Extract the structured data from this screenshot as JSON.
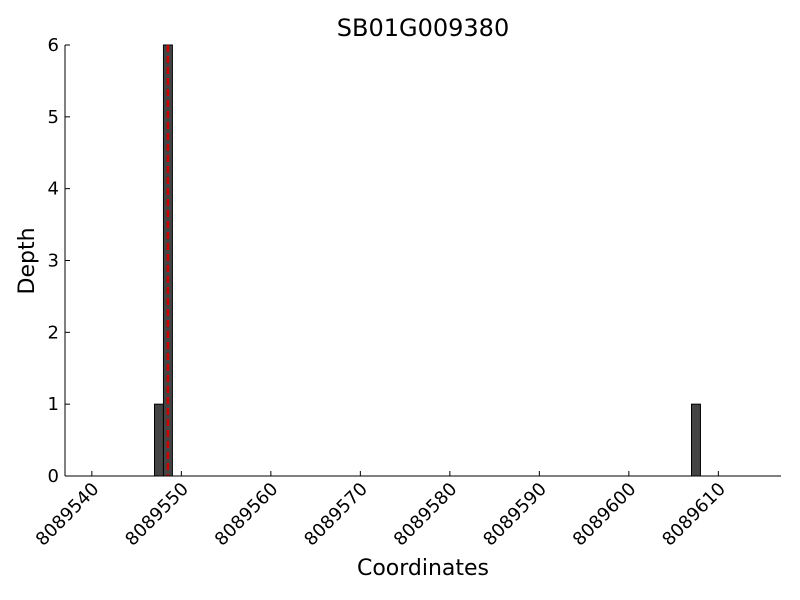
{
  "chart_data": {
    "type": "bar",
    "title": "SB01G009380",
    "x_label": "Coordinates",
    "y_label": "Depth",
    "x": [
      8089547,
      8089548,
      8089607
    ],
    "values": [
      1,
      6,
      1
    ],
    "bar_width": 1,
    "color": "#444444",
    "reference_line_x": 8089548.5,
    "reference_line_color": "#cc0000",
    "xlim": [
      8089537,
      8089617
    ],
    "xticks": [
      8089540,
      8089550,
      8089560,
      8089570,
      8089580,
      8089590,
      8089600,
      8089610
    ],
    "ylim": [
      0,
      6
    ],
    "yticks": [
      0,
      1,
      2,
      3,
      4,
      5,
      6
    ]
  }
}
